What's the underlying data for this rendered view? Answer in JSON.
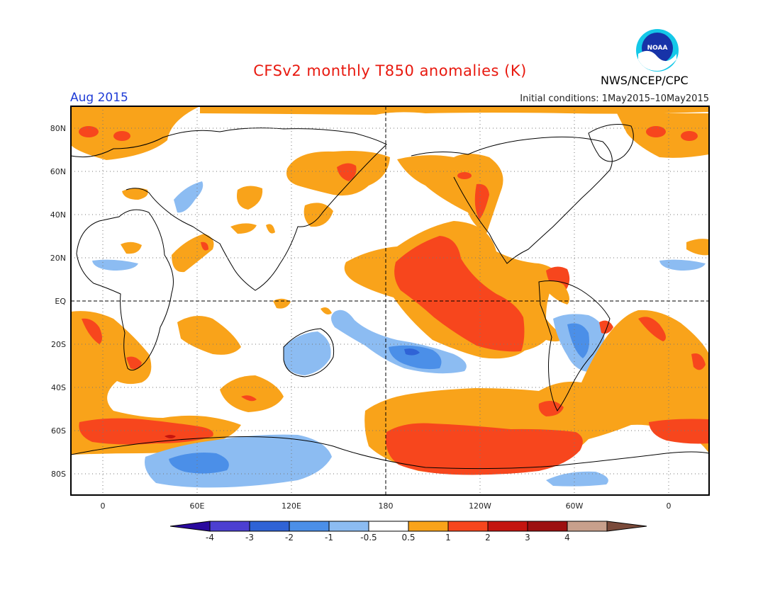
{
  "title": "CFSv2 monthly T850 anomalies (K)",
  "month_label": "Aug 2015",
  "initial_conditions": "Initial conditions: 1May2015–10May2015",
  "agency": "NWS/NCEP/CPC",
  "logo_text": "NOAA",
  "lat_labels": [
    "80N",
    "60N",
    "40N",
    "20N",
    "EQ",
    "20S",
    "40S",
    "60S",
    "80S"
  ],
  "lon_labels": [
    "0",
    "60E",
    "120E",
    "180",
    "120W",
    "60W",
    "0"
  ],
  "colorbar": {
    "labels": [
      "-4",
      "-3",
      "-2",
      "-1",
      "-0.5",
      "0.5",
      "1",
      "2",
      "3",
      "4"
    ],
    "colors": [
      "#2a0a9e",
      "#4c3fd1",
      "#2f63d6",
      "#4b8fe8",
      "#8cbcf2",
      "#ffffff",
      "#f9a31a",
      "#f7461d",
      "#c4150f",
      "#9d1010",
      "#c8a08c",
      "#7a4a3a"
    ]
  }
}
